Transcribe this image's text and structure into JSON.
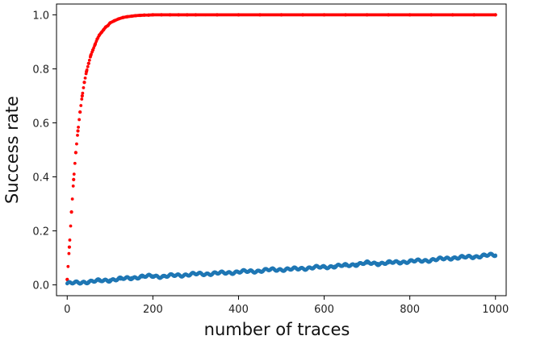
{
  "chart_data": {
    "type": "scatter",
    "xlabel": "number of traces",
    "ylabel": "Success rate",
    "xlim": [
      -25,
      1025
    ],
    "ylim": [
      -0.04,
      1.04
    ],
    "xticks": [
      0,
      200,
      400,
      600,
      800,
      1000
    ],
    "yticks": [
      0.0,
      0.2,
      0.4,
      0.6,
      0.8,
      1.0
    ],
    "xtick_labels": [
      "0",
      "200",
      "400",
      "600",
      "800",
      "1000"
    ],
    "ytick_labels": [
      "0.0",
      "0.2",
      "0.4",
      "0.6",
      "0.8",
      "1.0"
    ],
    "grid": false,
    "series": [
      {
        "color": "#ff0000",
        "x": [
          0,
          5,
          10,
          15,
          20,
          25,
          30,
          35,
          40,
          45,
          50,
          55,
          60,
          65,
          70,
          75,
          80,
          85,
          90,
          95,
          100,
          110,
          120,
          130,
          140,
          150,
          160,
          170,
          180,
          190,
          200,
          220,
          240,
          260,
          280,
          300,
          350,
          400,
          450,
          500,
          550,
          600,
          650,
          700,
          750,
          800,
          850,
          900,
          950,
          1000
        ],
        "y": [
          0.02,
          0.14,
          0.27,
          0.39,
          0.49,
          0.57,
          0.64,
          0.7,
          0.75,
          0.79,
          0.82,
          0.85,
          0.87,
          0.89,
          0.91,
          0.925,
          0.935,
          0.945,
          0.955,
          0.96,
          0.97,
          0.978,
          0.985,
          0.99,
          0.993,
          0.995,
          0.997,
          0.998,
          0.999,
          0.999,
          1.0,
          1.0,
          1.0,
          1.0,
          1.0,
          1.0,
          1.0,
          1.0,
          1.0,
          1.0,
          1.0,
          1.0,
          1.0,
          1.0,
          1.0,
          1.0,
          1.0,
          1.0,
          1.0,
          1.0
        ]
      },
      {
        "color": "#1f77b4",
        "x": [
          0,
          25,
          50,
          75,
          100,
          125,
          150,
          175,
          200,
          225,
          250,
          275,
          300,
          325,
          350,
          375,
          400,
          425,
          450,
          475,
          500,
          525,
          550,
          575,
          600,
          625,
          650,
          675,
          700,
          725,
          750,
          775,
          800,
          825,
          850,
          875,
          900,
          925,
          950,
          975,
          1000
        ],
        "y": [
          0.005,
          0.008,
          0.012,
          0.015,
          0.018,
          0.022,
          0.026,
          0.03,
          0.033,
          0.031,
          0.035,
          0.037,
          0.04,
          0.041,
          0.043,
          0.045,
          0.048,
          0.05,
          0.052,
          0.056,
          0.057,
          0.058,
          0.061,
          0.064,
          0.066,
          0.069,
          0.072,
          0.076,
          0.081,
          0.079,
          0.082,
          0.084,
          0.087,
          0.089,
          0.092,
          0.096,
          0.1,
          0.102,
          0.104,
          0.109,
          0.11
        ]
      }
    ]
  }
}
